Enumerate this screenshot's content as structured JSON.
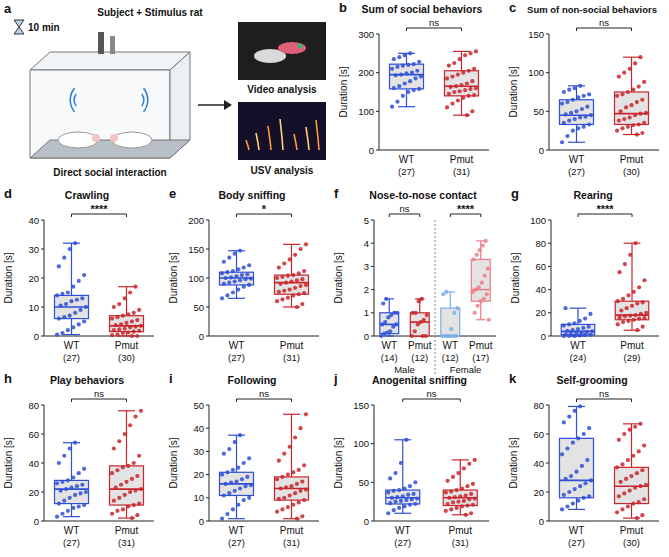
{
  "diagram": {
    "panel": "a",
    "timer": "10 min",
    "title": "Subject + Stimulus rat",
    "setup": "Direct social interaction",
    "outputs": [
      "Video analysis",
      "USV analysis"
    ]
  },
  "chart_data": [
    {
      "type": "box",
      "panel": "b",
      "title": "Sum of social behaviors",
      "y_label": "Duration [s]",
      "ylim": [
        0,
        300
      ],
      "yticks": [
        0,
        100,
        200,
        300
      ],
      "significance": [
        "ns"
      ],
      "series": [
        {
          "name": "WT",
          "n_label": "(27)",
          "color": "#2e4fd6",
          "box": [
            112,
            158,
            195,
            222,
            250
          ],
          "points": [
            112,
            125,
            140,
            150,
            155,
            158,
            160,
            165,
            172,
            178,
            185,
            190,
            193,
            195,
            198,
            200,
            205,
            210,
            215,
            218,
            220,
            222,
            228,
            235,
            240,
            245,
            250
          ]
        },
        {
          "name": "Pmut",
          "n_label": "(31)",
          "color": "#c9252c",
          "box": [
            90,
            140,
            165,
            205,
            255
          ],
          "points": [
            90,
            100,
            110,
            120,
            128,
            135,
            140,
            142,
            145,
            150,
            152,
            155,
            158,
            160,
            163,
            165,
            168,
            172,
            178,
            185,
            190,
            195,
            200,
            205,
            210,
            218,
            225,
            235,
            245,
            250,
            255
          ]
        }
      ]
    },
    {
      "type": "box",
      "panel": "c",
      "title": "Sum of non-social behaviors",
      "y_label": "Duration [s]",
      "ylim": [
        0,
        150
      ],
      "yticks": [
        0,
        50,
        100,
        150
      ],
      "significance": [
        "ns"
      ],
      "series": [
        {
          "name": "WT",
          "n_label": "(27)",
          "color": "#2e4fd6",
          "box": [
            10,
            33,
            45,
            65,
            83
          ],
          "points": [
            10,
            18,
            25,
            28,
            30,
            33,
            35,
            38,
            40,
            42,
            43,
            45,
            46,
            48,
            50,
            53,
            56,
            60,
            62,
            65,
            68,
            70,
            72,
            75,
            78,
            80,
            83
          ]
        },
        {
          "name": "Pmut",
          "n_label": "(30)",
          "color": "#c9252c",
          "box": [
            20,
            33,
            47,
            75,
            120
          ],
          "points": [
            20,
            22,
            25,
            28,
            30,
            32,
            33,
            35,
            38,
            40,
            42,
            45,
            47,
            48,
            50,
            55,
            58,
            62,
            65,
            70,
            72,
            75,
            78,
            82,
            88,
            95,
            100,
            105,
            112,
            120
          ]
        }
      ]
    },
    {
      "type": "box",
      "panel": "d",
      "title": "Crawling",
      "y_label": "Duration [s]",
      "ylim": [
        0,
        40
      ],
      "yticks": [
        0,
        10,
        20,
        30,
        40
      ],
      "significance": [
        "****"
      ],
      "series": [
        {
          "name": "WT",
          "n_label": "(27)",
          "color": "#2e4fd6",
          "box": [
            0.5,
            6,
            10,
            14,
            32
          ],
          "points": [
            0.5,
            1,
            2,
            3,
            4,
            5,
            6,
            6.5,
            7,
            8,
            9,
            10,
            10.5,
            11,
            12,
            12.5,
            13,
            14,
            14.5,
            15,
            17,
            19,
            21,
            24,
            27,
            30,
            32
          ]
        },
        {
          "name": "Pmut",
          "n_label": "(30)",
          "color": "#c9252c",
          "box": [
            0,
            1.5,
            3.5,
            7,
            17
          ],
          "points": [
            0,
            0,
            0.3,
            0.5,
            1,
            1.2,
            1.5,
            1.8,
            2,
            2.3,
            2.5,
            3,
            3.2,
            3.5,
            3.8,
            4,
            4.5,
            5,
            5.5,
            6,
            6.5,
            7,
            7.5,
            8,
            9,
            10,
            11,
            13,
            15,
            17
          ]
        }
      ]
    },
    {
      "type": "box",
      "panel": "e",
      "title": "Body sniffing",
      "y_label": "Duration [s]",
      "ylim": [
        0,
        200
      ],
      "yticks": [
        0,
        50,
        100,
        150,
        200
      ],
      "significance": [
        "*"
      ],
      "series": [
        {
          "name": "WT",
          "n_label": "(27)",
          "color": "#2e4fd6",
          "box": [
            65,
            88,
            100,
            110,
            147
          ],
          "points": [
            65,
            70,
            75,
            80,
            85,
            88,
            90,
            92,
            94,
            96,
            98,
            99,
            100,
            101,
            103,
            105,
            106,
            108,
            110,
            112,
            115,
            118,
            122,
            128,
            135,
            142,
            147
          ]
        },
        {
          "name": "Pmut",
          "n_label": "(31)",
          "color": "#c9252c",
          "box": [
            50,
            72,
            92,
            105,
            158
          ],
          "points": [
            50,
            55,
            60,
            63,
            66,
            70,
            72,
            74,
            76,
            78,
            80,
            83,
            86,
            88,
            90,
            92,
            94,
            96,
            98,
            100,
            102,
            104,
            105,
            108,
            112,
            118,
            125,
            132,
            140,
            150,
            158
          ]
        }
      ]
    },
    {
      "type": "box",
      "panel": "f",
      "title": "Nose-to-nose contact",
      "y_label": "Duration [s]",
      "ylim": [
        0,
        5
      ],
      "yticks": [
        0,
        1,
        2,
        3,
        4,
        5
      ],
      "significance": [
        "ns",
        "****"
      ],
      "groups": [
        "Male",
        "Female"
      ],
      "series": [
        {
          "name": "WT",
          "n_label": "(14)",
          "color": "#2e4fd6",
          "box": [
            0,
            0.1,
            0.5,
            1.0,
            1.6
          ],
          "points": [
            0,
            0.1,
            0.15,
            0.2,
            0.4,
            0.5,
            0.5,
            0.6,
            0.8,
            0.9,
            1.0,
            1.0,
            1.4,
            1.6
          ]
        },
        {
          "name": "Pmut",
          "n_label": "(12)",
          "color": "#c9252c",
          "box": [
            0,
            0,
            0.6,
            1.0,
            1.6
          ],
          "points": [
            0,
            0,
            0,
            0.2,
            0.5,
            0.6,
            0.7,
            0.9,
            1.0,
            1.0,
            1.5,
            1.6
          ]
        },
        {
          "name": "WT",
          "n_label": "(12)",
          "color": "#79aee8",
          "box": [
            0,
            0,
            0,
            1.2,
            1.9
          ],
          "points": [
            0,
            0,
            0,
            0,
            0,
            0,
            0,
            0.3,
            1.0,
            1.2,
            1.8,
            1.9
          ]
        },
        {
          "name": "Pmut",
          "n_label": "(17)",
          "color": "#ee7c86",
          "box": [
            0.7,
            1.5,
            2.0,
            3.3,
            4.1
          ],
          "points": [
            0.7,
            1.0,
            1.3,
            1.5,
            1.6,
            1.8,
            1.9,
            2.0,
            2.1,
            2.3,
            2.6,
            2.9,
            3.3,
            3.5,
            3.7,
            3.9,
            4.1
          ]
        }
      ]
    },
    {
      "type": "box",
      "panel": "g",
      "title": "Rearing",
      "y_label": "Duration [s]",
      "ylim": [
        0,
        100
      ],
      "yticks": [
        0,
        20,
        40,
        60,
        80,
        100
      ],
      "significance": [
        "****"
      ],
      "series": [
        {
          "name": "WT",
          "n_label": "(24)",
          "color": "#2e4fd6",
          "box": [
            0,
            1,
            4,
            10,
            24
          ],
          "points": [
            0,
            0,
            0,
            0.5,
            1,
            1,
            1.5,
            2,
            2.5,
            3,
            3.5,
            4,
            4.5,
            5,
            6,
            7,
            8,
            9,
            10,
            11,
            13,
            15,
            19,
            24
          ]
        },
        {
          "name": "Pmut",
          "n_label": "(29)",
          "color": "#c9252c",
          "box": [
            5,
            14,
            18,
            30,
            80
          ],
          "points": [
            5,
            8,
            10,
            12,
            13,
            14,
            15,
            15.5,
            16,
            17,
            17.5,
            18,
            19,
            20,
            22,
            24,
            26,
            28,
            29,
            30,
            32,
            35,
            38,
            42,
            48,
            55,
            62,
            70,
            80
          ]
        }
      ]
    },
    {
      "type": "box",
      "panel": "h",
      "title": "Play behaviors",
      "y_label": "Duration [s]",
      "ylim": [
        0,
        80
      ],
      "yticks": [
        0,
        20,
        40,
        60,
        80
      ],
      "significance": [
        "ns"
      ],
      "series": [
        {
          "name": "WT",
          "n_label": "(27)",
          "color": "#2e4fd6",
          "box": [
            3,
            12,
            22,
            28,
            54
          ],
          "points": [
            3,
            5,
            7,
            9,
            10,
            11,
            12,
            14,
            16,
            18,
            19,
            20,
            21,
            22,
            23,
            24,
            25,
            26,
            27,
            28,
            30,
            33,
            36,
            40,
            45,
            50,
            54
          ]
        },
        {
          "name": "Pmut",
          "n_label": "(31)",
          "color": "#c9252c",
          "box": [
            2,
            11,
            22,
            38,
            76
          ],
          "points": [
            2,
            4,
            5,
            7,
            8,
            10,
            11,
            12,
            14,
            16,
            18,
            20,
            21,
            22,
            23,
            25,
            27,
            29,
            31,
            33,
            35,
            37,
            38,
            40,
            45,
            50,
            55,
            60,
            66,
            72,
            76
          ]
        }
      ]
    },
    {
      "type": "box",
      "panel": "i",
      "title": "Following",
      "y_label": "Duration [s]",
      "ylim": [
        0,
        50
      ],
      "yticks": [
        0,
        10,
        20,
        30,
        40,
        50
      ],
      "significance": [
        "ns"
      ],
      "series": [
        {
          "name": "WT",
          "n_label": "(27)",
          "color": "#2e4fd6",
          "box": [
            1,
            11,
            16,
            21,
            37
          ],
          "points": [
            1,
            3,
            5,
            7,
            9,
            10,
            11,
            12,
            13,
            14,
            15,
            15.5,
            16,
            16.5,
            17,
            18,
            19,
            20,
            21,
            22,
            23,
            25,
            27,
            29,
            31,
            34,
            37
          ]
        },
        {
          "name": "Pmut",
          "n_label": "(31)",
          "color": "#c9252c",
          "box": [
            1,
            9,
            14,
            19,
            46
          ],
          "points": [
            1,
            2,
            4,
            5,
            6,
            7,
            8,
            9,
            9.5,
            10,
            11,
            12,
            13,
            13.5,
            14,
            14.5,
            15,
            16,
            17,
            18,
            19,
            20,
            21,
            22,
            24,
            26,
            29,
            32,
            36,
            40,
            46
          ]
        }
      ]
    },
    {
      "type": "box",
      "panel": "j",
      "title": "Anogenital sniffing",
      "y_label": "Duration [s]",
      "ylim": [
        0,
        150
      ],
      "yticks": [
        0,
        50,
        100,
        150
      ],
      "significance": [
        "ns"
      ],
      "series": [
        {
          "name": "WT",
          "n_label": "(27)",
          "color": "#2e4fd6",
          "box": [
            10,
            22,
            30,
            40,
            105
          ],
          "points": [
            10,
            14,
            17,
            19,
            21,
            22,
            23,
            25,
            26,
            27,
            28,
            29,
            30,
            31,
            32,
            34,
            35,
            37,
            39,
            40,
            42,
            45,
            50,
            55,
            62,
            75,
            105
          ]
        },
        {
          "name": "Pmut",
          "n_label": "(31)",
          "color": "#c9252c",
          "box": [
            8,
            20,
            30,
            40,
            79
          ],
          "points": [
            8,
            10,
            13,
            15,
            17,
            19,
            20,
            21,
            22,
            24,
            25,
            26,
            28,
            29,
            30,
            31,
            32,
            33,
            35,
            37,
            38,
            40,
            42,
            45,
            48,
            52,
            57,
            62,
            68,
            74,
            79
          ]
        }
      ]
    },
    {
      "type": "box",
      "panel": "k",
      "title": "Self-grooming",
      "y_label": "Duration [s]",
      "ylim": [
        0,
        80
      ],
      "yticks": [
        0,
        20,
        40,
        60,
        80
      ],
      "significance": [
        "ns"
      ],
      "series": [
        {
          "name": "WT",
          "n_label": "(27)",
          "color": "#2e4fd6",
          "box": [
            8,
            16,
            28,
            57,
            79
          ],
          "points": [
            8,
            10,
            12,
            14,
            16,
            17,
            18,
            20,
            22,
            24,
            26,
            28,
            29,
            31,
            34,
            38,
            42,
            46,
            50,
            54,
            57,
            60,
            64,
            68,
            72,
            76,
            79
          ]
        },
        {
          "name": "Pmut",
          "n_label": "(30)",
          "color": "#c9252c",
          "box": [
            2,
            12,
            24,
            37,
            67
          ],
          "points": [
            2,
            4,
            6,
            8,
            10,
            12,
            13,
            15,
            17,
            19,
            21,
            23,
            24,
            25,
            27,
            29,
            31,
            33,
            35,
            37,
            39,
            42,
            45,
            48,
            52,
            56,
            60,
            63,
            65,
            67
          ]
        }
      ]
    }
  ]
}
